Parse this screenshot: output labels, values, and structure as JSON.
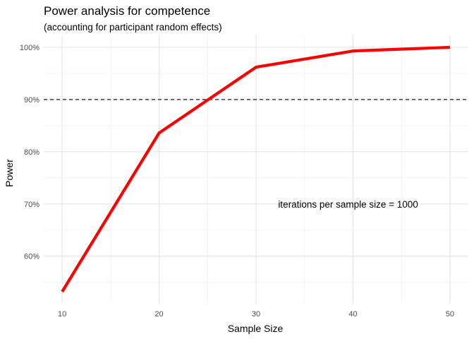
{
  "chart_data": {
    "type": "line",
    "title": "Power analysis for competence",
    "subtitle": "(accounting for participant random effects)",
    "xlabel": "Sample Size",
    "ylabel": "Power",
    "x": [
      10,
      20,
      30,
      40,
      50
    ],
    "series": [
      {
        "values": [
          0.532,
          0.836,
          0.962,
          0.993,
          1.0
        ],
        "color": "#ff0000"
      }
    ],
    "xlim": [
      8.1,
      51.9
    ],
    "ylim": [
      0.509,
      1.023
    ],
    "x_ticks": [
      10,
      20,
      30,
      40,
      50
    ],
    "x_tick_labels": [
      "10",
      "20",
      "30",
      "40",
      "50"
    ],
    "y_ticks": [
      0.6,
      0.7,
      0.8,
      0.9,
      1.0
    ],
    "y_tick_labels": [
      "60%",
      "70%",
      "80%",
      "90%",
      "100%"
    ],
    "reference_line": {
      "y": 0.9,
      "style": "dashed",
      "color": "#000000"
    },
    "annotation": {
      "text": "iterations per sample size = 1000",
      "x": 39.5,
      "y": 0.7
    },
    "grid": true,
    "legend": "none",
    "theme": "minimal"
  }
}
